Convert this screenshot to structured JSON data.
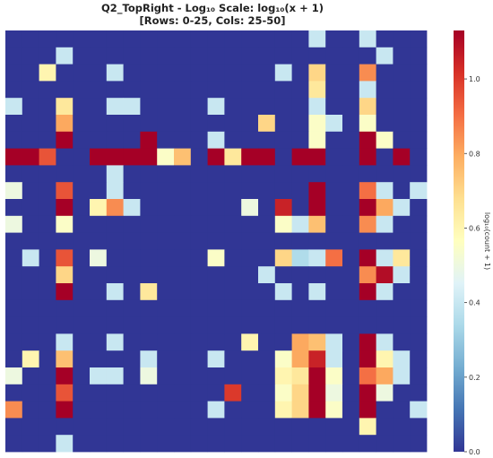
{
  "chart_data": {
    "type": "heatmap",
    "title_line1": "Q2_TopRight - Log₁₀ Scale: log₁₀(x + 1)",
    "title_line2": "[Rows: 0-25, Cols: 25-50]",
    "colorbar": {
      "label": "log₁₀(count + 1)",
      "range": [
        0,
        1.13
      ],
      "ticks": [
        0.0,
        0.2,
        0.4,
        0.6,
        0.8,
        1.0
      ],
      "tick_labels": [
        "0.0",
        "0.2",
        "0.4",
        "0.6",
        "0.8",
        "1.0"
      ]
    },
    "grid": false,
    "rows": 25,
    "cols": 25,
    "values": [
      [
        0,
        0,
        0,
        0,
        0,
        0,
        0,
        0,
        0,
        0,
        0,
        0,
        0,
        0,
        0,
        0,
        0,
        0,
        0.4,
        0,
        0,
        0.4,
        0,
        0,
        0
      ],
      [
        0,
        0,
        0,
        0.4,
        0,
        0,
        0,
        0,
        0,
        0,
        0,
        0,
        0,
        0,
        0,
        0,
        0,
        0,
        0,
        0,
        0,
        0,
        0.4,
        0,
        0
      ],
      [
        0,
        0,
        0.6,
        0,
        0,
        0,
        0.4,
        0,
        0,
        0,
        0,
        0,
        0,
        0,
        0,
        0,
        0.4,
        0,
        0.7,
        0,
        0,
        0.85,
        0,
        0,
        0
      ],
      [
        0,
        0,
        0,
        0,
        0,
        0,
        0,
        0,
        0,
        0,
        0,
        0,
        0,
        0,
        0,
        0,
        0,
        0,
        0.65,
        0,
        0,
        0.4,
        0,
        0,
        0
      ],
      [
        0.4,
        0,
        0,
        0.65,
        0,
        0,
        0.4,
        0.4,
        0,
        0,
        0,
        0,
        0.4,
        0,
        0,
        0,
        0,
        0,
        0.4,
        0,
        0,
        0.7,
        0,
        0,
        0
      ],
      [
        0,
        0,
        0,
        0.8,
        0,
        0,
        0,
        0,
        0,
        0,
        0,
        0,
        0,
        0,
        0,
        0.7,
        0,
        0,
        0.55,
        0.4,
        0,
        0.55,
        0,
        0,
        0
      ],
      [
        0,
        0,
        0,
        1.13,
        0,
        0,
        0,
        0,
        1.13,
        0,
        0,
        0,
        0.4,
        0,
        0,
        0,
        0,
        0,
        0.55,
        0,
        0,
        1.13,
        0.55,
        0,
        0
      ],
      [
        1.13,
        1.13,
        0.95,
        0,
        0,
        1.13,
        1.13,
        1.13,
        1.13,
        0.55,
        0.75,
        0,
        1.13,
        0.65,
        1.13,
        1.13,
        0,
        1.13,
        1.13,
        0,
        0,
        1.13,
        0,
        1.13,
        0
      ],
      [
        0,
        0,
        0,
        0,
        0,
        0,
        0.4,
        0,
        0,
        0,
        0,
        0,
        0,
        0,
        0,
        0,
        0,
        0,
        0,
        0,
        0,
        0,
        0,
        0,
        0
      ],
      [
        0.5,
        0,
        0,
        0.95,
        0,
        0,
        0.4,
        0,
        0,
        0,
        0,
        0,
        0,
        0,
        0,
        0,
        0,
        0,
        1.13,
        0,
        0,
        0.9,
        0.4,
        0,
        0.4
      ],
      [
        0,
        0,
        0,
        1.13,
        0,
        0.6,
        0.85,
        0.4,
        0,
        0,
        0,
        0,
        0,
        0,
        0.5,
        0,
        1.05,
        0,
        1.13,
        0,
        0,
        1.13,
        0.8,
        0.4,
        0
      ],
      [
        0.5,
        0,
        0,
        0.55,
        0,
        0,
        0,
        0,
        0,
        0,
        0,
        0,
        0,
        0,
        0,
        0,
        0.55,
        0.4,
        0.75,
        0,
        0,
        0.85,
        0.4,
        0,
        0
      ],
      [
        0,
        0,
        0,
        0,
        0,
        0,
        0,
        0,
        0,
        0,
        0,
        0,
        0,
        0,
        0,
        0,
        0,
        0,
        0,
        0,
        0,
        0,
        0,
        0,
        0
      ],
      [
        0,
        0.4,
        0,
        0.95,
        0,
        0.5,
        0,
        0,
        0,
        0,
        0,
        0,
        0.55,
        0,
        0,
        0,
        0.7,
        0.35,
        0.4,
        0.9,
        0,
        1.13,
        0.4,
        0.65,
        0
      ],
      [
        0,
        0,
        0,
        0.7,
        0,
        0,
        0,
        0,
        0,
        0,
        0,
        0,
        0,
        0,
        0,
        0.4,
        0,
        0,
        0,
        0,
        0,
        0.85,
        1.1,
        0.4,
        0
      ],
      [
        0,
        0,
        0,
        1.13,
        0,
        0,
        0.4,
        0,
        0.65,
        0,
        0,
        0,
        0,
        0,
        0,
        0,
        0.4,
        0,
        0.4,
        0,
        0,
        1.13,
        0.4,
        0,
        0
      ],
      [
        0,
        0,
        0,
        0,
        0,
        0,
        0,
        0,
        0,
        0,
        0,
        0,
        0,
        0,
        0,
        0,
        0,
        0,
        0,
        0,
        0,
        0,
        0,
        0,
        0
      ],
      [
        0,
        0,
        0,
        0,
        0,
        0,
        0,
        0,
        0,
        0,
        0,
        0,
        0,
        0,
        0,
        0,
        0,
        0,
        0,
        0,
        0,
        0,
        0,
        0,
        0
      ],
      [
        0,
        0,
        0,
        0.4,
        0,
        0,
        0.4,
        0,
        0,
        0,
        0,
        0,
        0,
        0,
        0.6,
        0,
        0,
        0.8,
        0.75,
        0.4,
        0,
        1.13,
        0.4,
        0,
        0
      ],
      [
        0,
        0.6,
        0,
        0.75,
        0,
        0,
        0,
        0,
        0.4,
        0,
        0,
        0,
        0.4,
        0,
        0,
        0,
        0.55,
        0.8,
        1.05,
        0.4,
        0,
        1.13,
        0.6,
        0.4,
        0
      ],
      [
        0.5,
        0,
        0,
        1.13,
        0,
        0.4,
        0.4,
        0,
        0.5,
        0,
        0,
        0,
        0,
        0,
        0,
        0,
        0.6,
        0.65,
        1.13,
        0.55,
        0,
        0.9,
        0.8,
        0.4,
        0
      ],
      [
        0,
        0,
        0,
        0.95,
        0,
        0,
        0,
        0,
        0,
        0,
        0,
        0,
        0,
        1.0,
        0,
        0,
        0.55,
        0.7,
        1.13,
        0.5,
        0,
        1.13,
        0.5,
        0,
        0
      ],
      [
        0.85,
        0,
        0,
        1.13,
        0,
        0,
        0,
        0,
        0,
        0,
        0,
        0,
        0.4,
        0,
        0,
        0,
        0.6,
        0.7,
        1.13,
        0.55,
        0,
        1.13,
        0,
        0,
        0.4
      ],
      [
        0,
        0,
        0,
        0,
        0,
        0,
        0,
        0,
        0,
        0,
        0,
        0,
        0,
        0,
        0,
        0,
        0,
        0,
        0,
        0,
        0,
        0.6,
        0,
        0,
        0
      ],
      [
        0,
        0,
        0,
        0.4,
        0,
        0,
        0,
        0,
        0,
        0,
        0,
        0,
        0,
        0,
        0,
        0,
        0,
        0,
        0,
        0,
        0,
        0,
        0,
        0,
        0
      ]
    ]
  }
}
